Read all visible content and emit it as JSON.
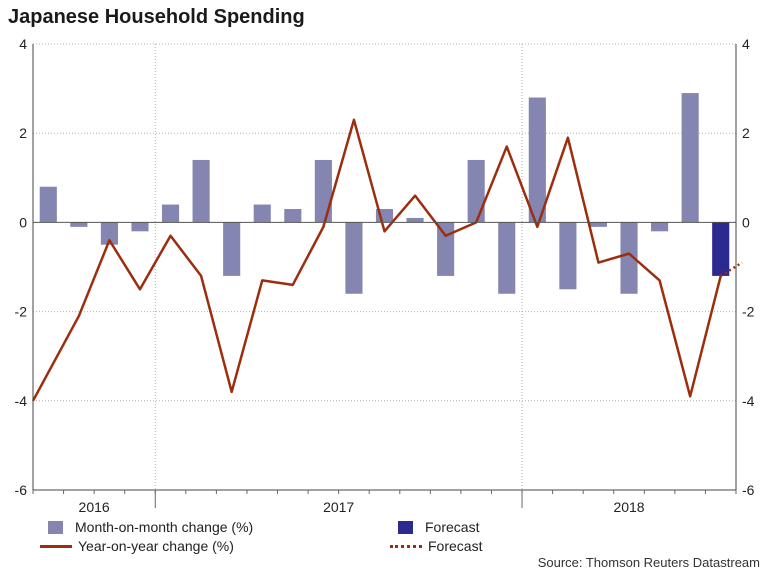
{
  "chart_data": {
    "type": "bar+line",
    "title": "Japanese Household Spending",
    "ylim": [
      -6,
      4
    ],
    "y_ticks": [
      4,
      2,
      0,
      -2,
      -4,
      -6
    ],
    "year_labels": [
      "2016",
      "2017",
      "2018"
    ],
    "source": "Source: Thomson Reuters Datastream",
    "colors": {
      "bar": "#8585b2",
      "forecast_bar": "#2b2b8f",
      "line": "#9c2e0e",
      "grid": "#b0b0b0"
    },
    "mom_series": {
      "name": "Month-on-month change (%)",
      "values": [
        0.8,
        -0.1,
        -0.5,
        -0.2,
        0.4,
        1.4,
        -1.2,
        0.4,
        0.3,
        1.4,
        -1.6,
        0.3,
        0.1,
        -1.2,
        1.4,
        -1.6,
        2.8,
        -1.5,
        -0.1,
        -1.6,
        -0.2,
        2.9,
        null
      ]
    },
    "mom_forecast": {
      "name": "Forecast",
      "values": [
        null,
        null,
        null,
        null,
        null,
        null,
        null,
        null,
        null,
        null,
        null,
        null,
        null,
        null,
        null,
        null,
        null,
        null,
        null,
        null,
        null,
        null,
        -1.2
      ]
    },
    "yoy_series": {
      "name": "Year-on-year change (%)",
      "values": [
        -4.0,
        -2.1,
        -0.4,
        -1.5,
        -0.3,
        -1.2,
        -3.8,
        -1.3,
        -1.4,
        -0.1,
        2.3,
        -0.2,
        0.6,
        -0.3,
        0.0,
        1.7,
        -0.1,
        1.9,
        -0.9,
        -0.7,
        -1.3,
        -3.9,
        -1.2
      ]
    },
    "yoy_forecast": {
      "name": "Forecast",
      "from_value": -1.2,
      "to_value": -0.9
    }
  },
  "legend": {
    "mom_label": "Month-on-month change (%)",
    "yoy_label": "Year-on-year change (%)",
    "forecast_bar_label": "Forecast",
    "forecast_line_label": "Forecast"
  }
}
